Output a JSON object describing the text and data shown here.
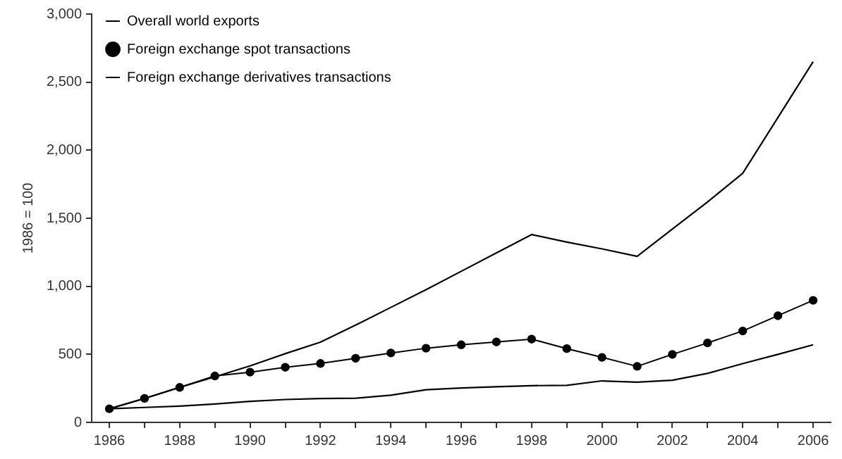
{
  "chart_data": {
    "type": "line",
    "ylabel": "1986 = 100",
    "x": [
      1986,
      1987,
      1988,
      1989,
      1990,
      1991,
      1992,
      1993,
      1994,
      1995,
      1996,
      1997,
      1998,
      1999,
      2000,
      2001,
      2002,
      2003,
      2004,
      2005,
      2006
    ],
    "xlim": [
      1985.5,
      2006.5
    ],
    "xticks": [
      1986,
      {
        "value": 1987,
        "label": null
      },
      1988,
      {
        "value": 1989,
        "label": null
      },
      1990,
      {
        "value": 1991,
        "label": null
      },
      1992,
      {
        "value": 1993,
        "label": null
      },
      1994,
      {
        "value": 1995,
        "label": null
      },
      1996,
      {
        "value": 1997,
        "label": null
      },
      1998,
      {
        "value": 1999,
        "label": null
      },
      2000,
      {
        "value": 2001,
        "label": null
      },
      2002,
      {
        "value": 2003,
        "label": null
      },
      2004,
      {
        "value": 2005,
        "label": null
      },
      2006
    ],
    "ylim": [
      0,
      3000
    ],
    "yticks": [
      0,
      {
        "value": 500,
        "label": "500"
      },
      {
        "value": 1000,
        "label": "1,000"
      },
      {
        "value": 1500,
        "label": "1,500"
      },
      {
        "value": 2000,
        "label": "2,000"
      },
      {
        "value": 2500,
        "label": "2,500"
      },
      {
        "value": 3000,
        "label": "3,000"
      }
    ],
    "grid": false,
    "legend": "top left",
    "series": [
      {
        "name": "Overall world exports",
        "color": "#000000",
        "marker": "none",
        "values": [
          100,
          110,
          120,
          135,
          155,
          168,
          175,
          178,
          200,
          240,
          253,
          262,
          270,
          272,
          305,
          295,
          310,
          360,
          432,
          500,
          570
        ]
      },
      {
        "name": "Foreign exchange spot transactions",
        "color": "#000000",
        "marker": "circle",
        "values": [
          100,
          176,
          257,
          341,
          369,
          405,
          433,
          471,
          510,
          545,
          570,
          591,
          612,
          542,
          478,
          412,
          500,
          584,
          672,
          784,
          897
        ]
      },
      {
        "name": "Foreign exchange derivatives transactions",
        "color": "#000000",
        "marker": "none",
        "values": [
          100,
          176,
          257,
          335,
          415,
          505,
          590,
          715,
          845,
          975,
          1110,
          1245,
          1380,
          1325,
          1275,
          1220,
          1420,
          1620,
          1830,
          2240,
          2650
        ]
      }
    ]
  }
}
